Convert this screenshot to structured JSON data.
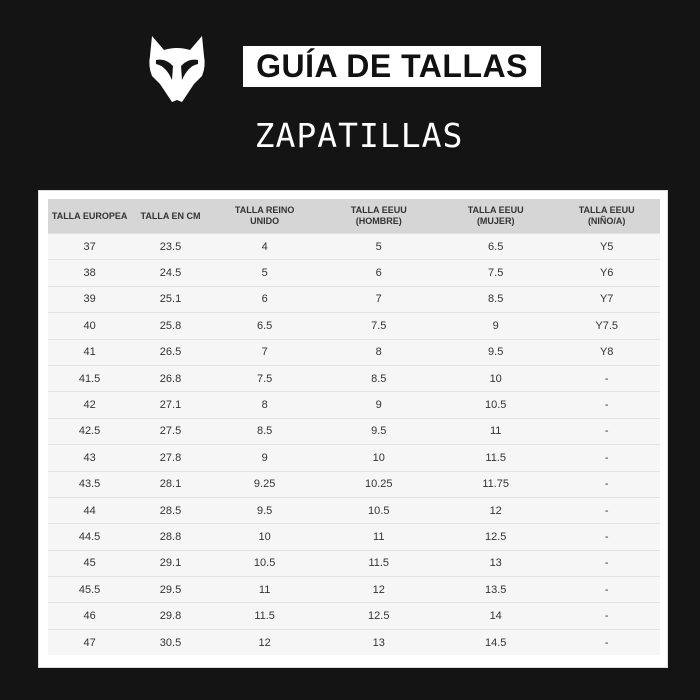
{
  "header": {
    "logo_icon": "fox-head-icon",
    "title": "GUÍA DE TALLAS",
    "subtitle": "ZAPATILLAS"
  },
  "table": {
    "columns": [
      "TALLA EUROPEA",
      "TALLA EN CM",
      "TALLA REINO UNIDO",
      "TALLA EEUU (HOMBRE)",
      "TALLA EEUU (MUJER)",
      "TALLA EEUU (NIÑO/A)"
    ],
    "rows": [
      [
        "37",
        "23.5",
        "4",
        "5",
        "6.5",
        "Y5"
      ],
      [
        "38",
        "24.5",
        "5",
        "6",
        "7.5",
        "Y6"
      ],
      [
        "39",
        "25.1",
        "6",
        "7",
        "8.5",
        "Y7"
      ],
      [
        "40",
        "25.8",
        "6.5",
        "7.5",
        "9",
        "Y7.5"
      ],
      [
        "41",
        "26.5",
        "7",
        "8",
        "9.5",
        "Y8"
      ],
      [
        "41.5",
        "26.8",
        "7.5",
        "8.5",
        "10",
        "-"
      ],
      [
        "42",
        "27.1",
        "8",
        "9",
        "10.5",
        "-"
      ],
      [
        "42.5",
        "27.5",
        "8.5",
        "9.5",
        "11",
        "-"
      ],
      [
        "43",
        "27.8",
        "9",
        "10",
        "11.5",
        "-"
      ],
      [
        "43.5",
        "28.1",
        "9.25",
        "10.25",
        "11.75",
        "-"
      ],
      [
        "44",
        "28.5",
        "9.5",
        "10.5",
        "12",
        "-"
      ],
      [
        "44.5",
        "28.8",
        "10",
        "11",
        "12.5",
        "-"
      ],
      [
        "45",
        "29.1",
        "10.5",
        "11.5",
        "13",
        "-"
      ],
      [
        "45.5",
        "29.5",
        "11",
        "12",
        "13.5",
        "-"
      ],
      [
        "46",
        "29.8",
        "11.5",
        "12.5",
        "14",
        "-"
      ],
      [
        "47",
        "30.5",
        "12",
        "13",
        "14.5",
        "-"
      ]
    ]
  }
}
